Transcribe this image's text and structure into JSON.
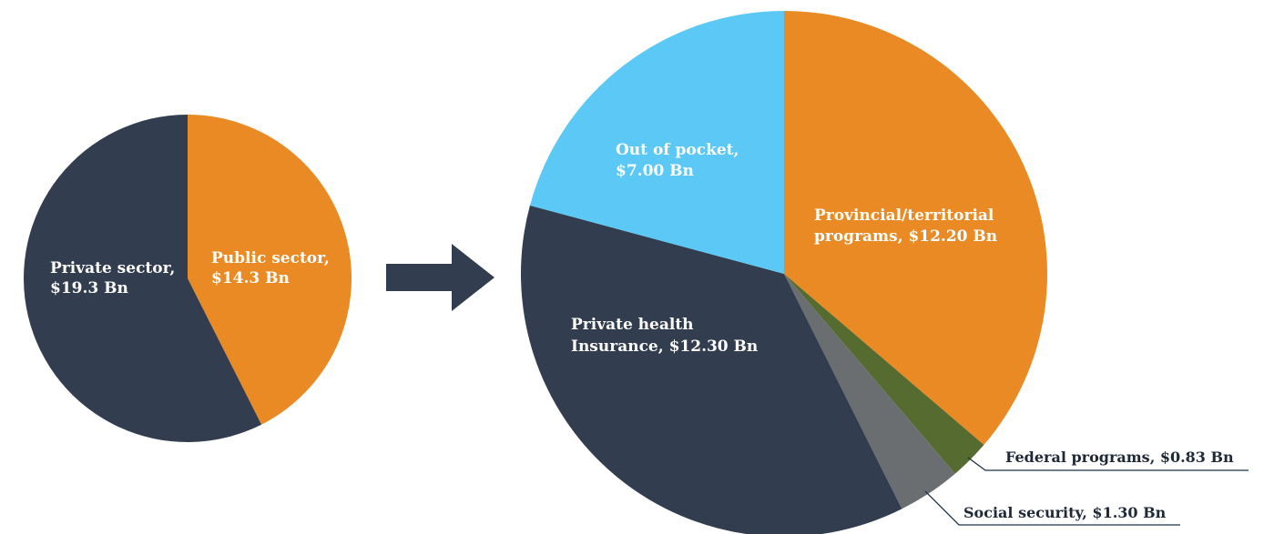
{
  "chart_data": [
    {
      "type": "pie",
      "title": "",
      "slices": [
        {
          "label": "Public sector,",
          "value_label": "$14.3 Bn",
          "value": 14.3,
          "color": "#E98A24"
        },
        {
          "label": "Private sector,",
          "value_label": "$19.3 Bn",
          "value": 19.3,
          "color": "#323E4F"
        }
      ]
    },
    {
      "type": "pie",
      "title": "",
      "slices": [
        {
          "label": "Provincial/territorial",
          "value_label": "programs, $12.20 Bn",
          "value": 12.2,
          "color": "#E98A24"
        },
        {
          "label": "Federal programs, $0.83 Bn",
          "value_label": "",
          "value": 0.83,
          "color": "#556B2F"
        },
        {
          "label": "Social security, $1.30 Bn",
          "value_label": "",
          "value": 1.3,
          "color": "#6B6E70"
        },
        {
          "label": "Private health",
          "value_label": "Insurance, $12.30 Bn",
          "value": 12.3,
          "color": "#323E4F"
        },
        {
          "label": "Out of pocket,",
          "value_label": "$7.00 Bn",
          "value": 7.0,
          "color": "#5BC8F5"
        }
      ]
    }
  ],
  "arrow_color": "#323E4F"
}
